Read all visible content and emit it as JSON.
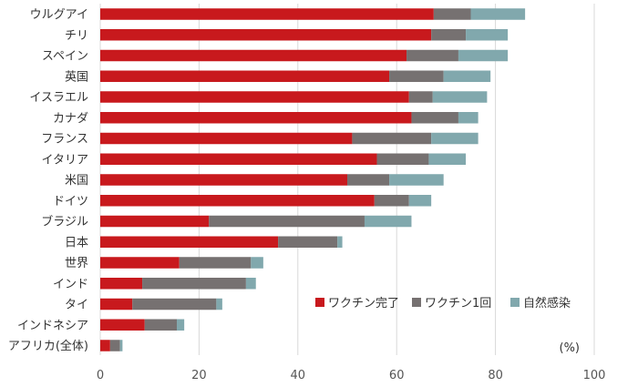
{
  "chart_data": {
    "type": "bar",
    "orientation": "horizontal",
    "stacked": true,
    "categories": [
      "ウルグアイ",
      "チリ",
      "スペイン",
      "英国",
      "イスラエル",
      "カナダ",
      "フランス",
      "イタリア",
      "米国",
      "ドイツ",
      "ブラジル",
      "日本",
      "世界",
      "インド",
      "タイ",
      "インドネシア",
      "アフリカ(全体)"
    ],
    "series": [
      {
        "name": "ワクチン完了",
        "color": "#c8191d",
        "values": [
          67.5,
          67,
          62,
          58.5,
          62.5,
          63,
          51,
          56,
          50,
          55.5,
          22,
          36,
          16,
          8.5,
          6.5,
          9,
          2
        ]
      },
      {
        "name": "ワクチン1回",
        "color": "#767171",
        "values": [
          7.5,
          7,
          10.5,
          11,
          4.8,
          9.5,
          16,
          10.5,
          8.5,
          7,
          31.5,
          12,
          14.5,
          21,
          17,
          6.5,
          2
        ]
      },
      {
        "name": "自然感染",
        "color": "#81a8ad",
        "values": [
          11,
          8.5,
          10,
          9.5,
          11,
          4,
          9.5,
          7.5,
          11,
          4.5,
          9.5,
          1,
          2.5,
          2,
          1.2,
          1.5,
          0.5
        ]
      }
    ],
    "xlim": [
      0,
      100
    ],
    "xticks": [
      0,
      20,
      40,
      60,
      80,
      100
    ],
    "xlabel": "(%)",
    "grid": true,
    "legend": "bottom-right"
  }
}
